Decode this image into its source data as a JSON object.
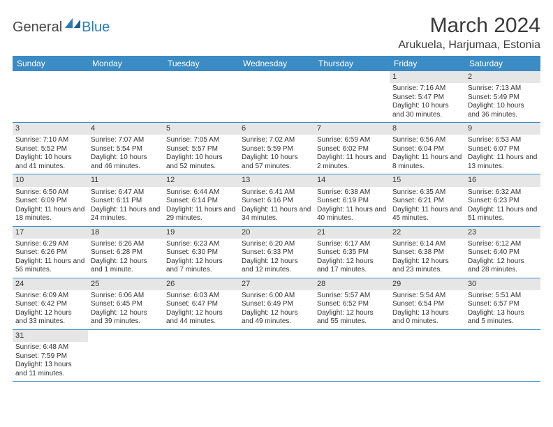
{
  "logo": {
    "text_dark": "General",
    "text_blue": "Blue"
  },
  "title": "March 2024",
  "location": "Arukuela, Harjumaa, Estonia",
  "headers": [
    "Sunday",
    "Monday",
    "Tuesday",
    "Wednesday",
    "Thursday",
    "Friday",
    "Saturday"
  ],
  "colors": {
    "header_bg": "#3b8bc4",
    "header_fg": "#ffffff",
    "daynum_bg": "#e6e6e6",
    "border": "#3b8bc4",
    "text": "#333333",
    "logo_blue": "#2a7db8"
  },
  "weeks": [
    [
      {
        "n": "",
        "sunrise": "",
        "sunset": "",
        "daylight": ""
      },
      {
        "n": "",
        "sunrise": "",
        "sunset": "",
        "daylight": ""
      },
      {
        "n": "",
        "sunrise": "",
        "sunset": "",
        "daylight": ""
      },
      {
        "n": "",
        "sunrise": "",
        "sunset": "",
        "daylight": ""
      },
      {
        "n": "",
        "sunrise": "",
        "sunset": "",
        "daylight": ""
      },
      {
        "n": "1",
        "sunrise": "Sunrise: 7:16 AM",
        "sunset": "Sunset: 5:47 PM",
        "daylight": "Daylight: 10 hours and 30 minutes."
      },
      {
        "n": "2",
        "sunrise": "Sunrise: 7:13 AM",
        "sunset": "Sunset: 5:49 PM",
        "daylight": "Daylight: 10 hours and 36 minutes."
      }
    ],
    [
      {
        "n": "3",
        "sunrise": "Sunrise: 7:10 AM",
        "sunset": "Sunset: 5:52 PM",
        "daylight": "Daylight: 10 hours and 41 minutes."
      },
      {
        "n": "4",
        "sunrise": "Sunrise: 7:07 AM",
        "sunset": "Sunset: 5:54 PM",
        "daylight": "Daylight: 10 hours and 46 minutes."
      },
      {
        "n": "5",
        "sunrise": "Sunrise: 7:05 AM",
        "sunset": "Sunset: 5:57 PM",
        "daylight": "Daylight: 10 hours and 52 minutes."
      },
      {
        "n": "6",
        "sunrise": "Sunrise: 7:02 AM",
        "sunset": "Sunset: 5:59 PM",
        "daylight": "Daylight: 10 hours and 57 minutes."
      },
      {
        "n": "7",
        "sunrise": "Sunrise: 6:59 AM",
        "sunset": "Sunset: 6:02 PM",
        "daylight": "Daylight: 11 hours and 2 minutes."
      },
      {
        "n": "8",
        "sunrise": "Sunrise: 6:56 AM",
        "sunset": "Sunset: 6:04 PM",
        "daylight": "Daylight: 11 hours and 8 minutes."
      },
      {
        "n": "9",
        "sunrise": "Sunrise: 6:53 AM",
        "sunset": "Sunset: 6:07 PM",
        "daylight": "Daylight: 11 hours and 13 minutes."
      }
    ],
    [
      {
        "n": "10",
        "sunrise": "Sunrise: 6:50 AM",
        "sunset": "Sunset: 6:09 PM",
        "daylight": "Daylight: 11 hours and 18 minutes."
      },
      {
        "n": "11",
        "sunrise": "Sunrise: 6:47 AM",
        "sunset": "Sunset: 6:11 PM",
        "daylight": "Daylight: 11 hours and 24 minutes."
      },
      {
        "n": "12",
        "sunrise": "Sunrise: 6:44 AM",
        "sunset": "Sunset: 6:14 PM",
        "daylight": "Daylight: 11 hours and 29 minutes."
      },
      {
        "n": "13",
        "sunrise": "Sunrise: 6:41 AM",
        "sunset": "Sunset: 6:16 PM",
        "daylight": "Daylight: 11 hours and 34 minutes."
      },
      {
        "n": "14",
        "sunrise": "Sunrise: 6:38 AM",
        "sunset": "Sunset: 6:19 PM",
        "daylight": "Daylight: 11 hours and 40 minutes."
      },
      {
        "n": "15",
        "sunrise": "Sunrise: 6:35 AM",
        "sunset": "Sunset: 6:21 PM",
        "daylight": "Daylight: 11 hours and 45 minutes."
      },
      {
        "n": "16",
        "sunrise": "Sunrise: 6:32 AM",
        "sunset": "Sunset: 6:23 PM",
        "daylight": "Daylight: 11 hours and 51 minutes."
      }
    ],
    [
      {
        "n": "17",
        "sunrise": "Sunrise: 6:29 AM",
        "sunset": "Sunset: 6:26 PM",
        "daylight": "Daylight: 11 hours and 56 minutes."
      },
      {
        "n": "18",
        "sunrise": "Sunrise: 6:26 AM",
        "sunset": "Sunset: 6:28 PM",
        "daylight": "Daylight: 12 hours and 1 minute."
      },
      {
        "n": "19",
        "sunrise": "Sunrise: 6:23 AM",
        "sunset": "Sunset: 6:30 PM",
        "daylight": "Daylight: 12 hours and 7 minutes."
      },
      {
        "n": "20",
        "sunrise": "Sunrise: 6:20 AM",
        "sunset": "Sunset: 6:33 PM",
        "daylight": "Daylight: 12 hours and 12 minutes."
      },
      {
        "n": "21",
        "sunrise": "Sunrise: 6:17 AM",
        "sunset": "Sunset: 6:35 PM",
        "daylight": "Daylight: 12 hours and 17 minutes."
      },
      {
        "n": "22",
        "sunrise": "Sunrise: 6:14 AM",
        "sunset": "Sunset: 6:38 PM",
        "daylight": "Daylight: 12 hours and 23 minutes."
      },
      {
        "n": "23",
        "sunrise": "Sunrise: 6:12 AM",
        "sunset": "Sunset: 6:40 PM",
        "daylight": "Daylight: 12 hours and 28 minutes."
      }
    ],
    [
      {
        "n": "24",
        "sunrise": "Sunrise: 6:09 AM",
        "sunset": "Sunset: 6:42 PM",
        "daylight": "Daylight: 12 hours and 33 minutes."
      },
      {
        "n": "25",
        "sunrise": "Sunrise: 6:06 AM",
        "sunset": "Sunset: 6:45 PM",
        "daylight": "Daylight: 12 hours and 39 minutes."
      },
      {
        "n": "26",
        "sunrise": "Sunrise: 6:03 AM",
        "sunset": "Sunset: 6:47 PM",
        "daylight": "Daylight: 12 hours and 44 minutes."
      },
      {
        "n": "27",
        "sunrise": "Sunrise: 6:00 AM",
        "sunset": "Sunset: 6:49 PM",
        "daylight": "Daylight: 12 hours and 49 minutes."
      },
      {
        "n": "28",
        "sunrise": "Sunrise: 5:57 AM",
        "sunset": "Sunset: 6:52 PM",
        "daylight": "Daylight: 12 hours and 55 minutes."
      },
      {
        "n": "29",
        "sunrise": "Sunrise: 5:54 AM",
        "sunset": "Sunset: 6:54 PM",
        "daylight": "Daylight: 13 hours and 0 minutes."
      },
      {
        "n": "30",
        "sunrise": "Sunrise: 5:51 AM",
        "sunset": "Sunset: 6:57 PM",
        "daylight": "Daylight: 13 hours and 5 minutes."
      }
    ],
    [
      {
        "n": "31",
        "sunrise": "Sunrise: 6:48 AM",
        "sunset": "Sunset: 7:59 PM",
        "daylight": "Daylight: 13 hours and 11 minutes."
      },
      {
        "n": "",
        "sunrise": "",
        "sunset": "",
        "daylight": ""
      },
      {
        "n": "",
        "sunrise": "",
        "sunset": "",
        "daylight": ""
      },
      {
        "n": "",
        "sunrise": "",
        "sunset": "",
        "daylight": ""
      },
      {
        "n": "",
        "sunrise": "",
        "sunset": "",
        "daylight": ""
      },
      {
        "n": "",
        "sunrise": "",
        "sunset": "",
        "daylight": ""
      },
      {
        "n": "",
        "sunrise": "",
        "sunset": "",
        "daylight": ""
      }
    ]
  ]
}
